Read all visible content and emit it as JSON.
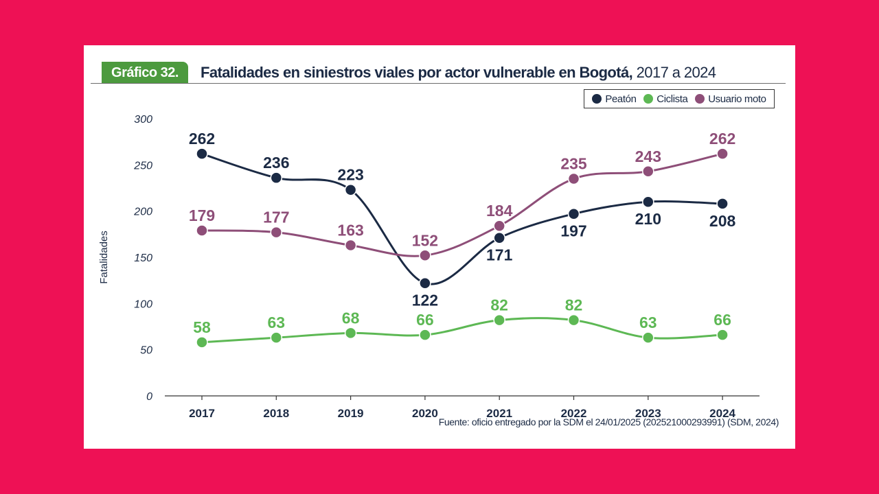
{
  "header": {
    "badge": "Gráfico 32.",
    "title_bold": "Fatalidades en siniestros viales por actor vulnerable en Bogotá,",
    "title_rest": " 2017 a 2024"
  },
  "source": "Fuente: oficio entregado por la SDM el 24/01/2025 (202521000293991) (SDM, 2024)",
  "colors": {
    "background": "#EE1155",
    "badge": "#4C9A3E",
    "peaton": "#1B2A44",
    "ciclista": "#5DB854",
    "moto": "#8E4E78"
  },
  "chart_data": {
    "type": "line",
    "title": "Fatalidades en siniestros viales por actor vulnerable en Bogotá, 2017 a 2024",
    "xlabel": "",
    "ylabel": "Fatalidades",
    "ylim": [
      0,
      300
    ],
    "yticks": [
      0,
      50,
      100,
      150,
      200,
      250,
      300
    ],
    "categories": [
      "2017",
      "2018",
      "2019",
      "2020",
      "2021",
      "2022",
      "2023",
      "2024"
    ],
    "legend_position": "top-right",
    "series": [
      {
        "name": "Peatón",
        "color": "#1B2A44",
        "values": [
          262,
          236,
          223,
          122,
          171,
          197,
          210,
          208
        ],
        "label_pos": [
          "above",
          "above",
          "above",
          "below",
          "below",
          "below",
          "below",
          "below"
        ]
      },
      {
        "name": "Ciclista",
        "color": "#5DB854",
        "values": [
          58,
          63,
          68,
          66,
          82,
          82,
          63,
          66
        ],
        "label_pos": [
          "above",
          "above",
          "above",
          "above",
          "above",
          "above",
          "above",
          "above"
        ]
      },
      {
        "name": "Usuario moto",
        "color": "#8E4E78",
        "values": [
          179,
          177,
          163,
          152,
          184,
          235,
          243,
          262
        ],
        "label_pos": [
          "above",
          "above",
          "above",
          "above",
          "above",
          "above",
          "above",
          "above"
        ]
      }
    ]
  }
}
